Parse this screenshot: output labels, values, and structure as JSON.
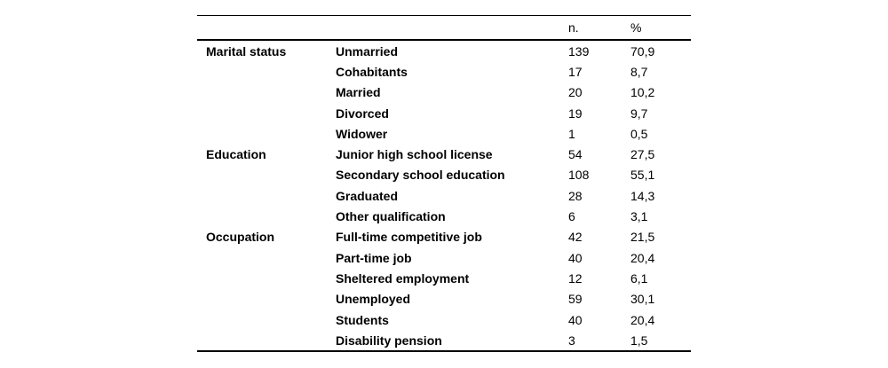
{
  "table": {
    "headers": {
      "category": "",
      "label": "",
      "col_n": "n.",
      "col_pct": "%"
    },
    "groups": [
      {
        "category": "Marital status",
        "rows": [
          {
            "label": "Unmarried",
            "n": "139",
            "pct": "70,9"
          },
          {
            "label": "Cohabitants",
            "n": "17",
            "pct": "8,7"
          },
          {
            "label": "Married",
            "n": "20",
            "pct": "10,2"
          },
          {
            "label": "Divorced",
            "n": "19",
            "pct": "9,7"
          },
          {
            "label": "Widower",
            "n": "1",
            "pct": "0,5"
          }
        ]
      },
      {
        "category": "Education",
        "rows": [
          {
            "label": "Junior high school license",
            "n": "54",
            "pct": "27,5"
          },
          {
            "label": "Secondary school education",
            "n": "108",
            "pct": "55,1"
          },
          {
            "label": "Graduated",
            "n": "28",
            "pct": "14,3"
          },
          {
            "label": "Other qualification",
            "n": "6",
            "pct": "3,1"
          }
        ]
      },
      {
        "category": "Occupation",
        "rows": [
          {
            "label": "Full-time competitive job",
            "n": "42",
            "pct": "21,5"
          },
          {
            "label": "Part-time job",
            "n": "40",
            "pct": "20,4"
          },
          {
            "label": "Sheltered employment",
            "n": "12",
            "pct": "6,1"
          },
          {
            "label": "Unemployed",
            "n": "59",
            "pct": "30,1"
          },
          {
            "label": "Students",
            "n": "40",
            "pct": "20,4"
          },
          {
            "label": "Disability pension",
            "n": "3",
            "pct": "1,5"
          }
        ]
      }
    ]
  }
}
